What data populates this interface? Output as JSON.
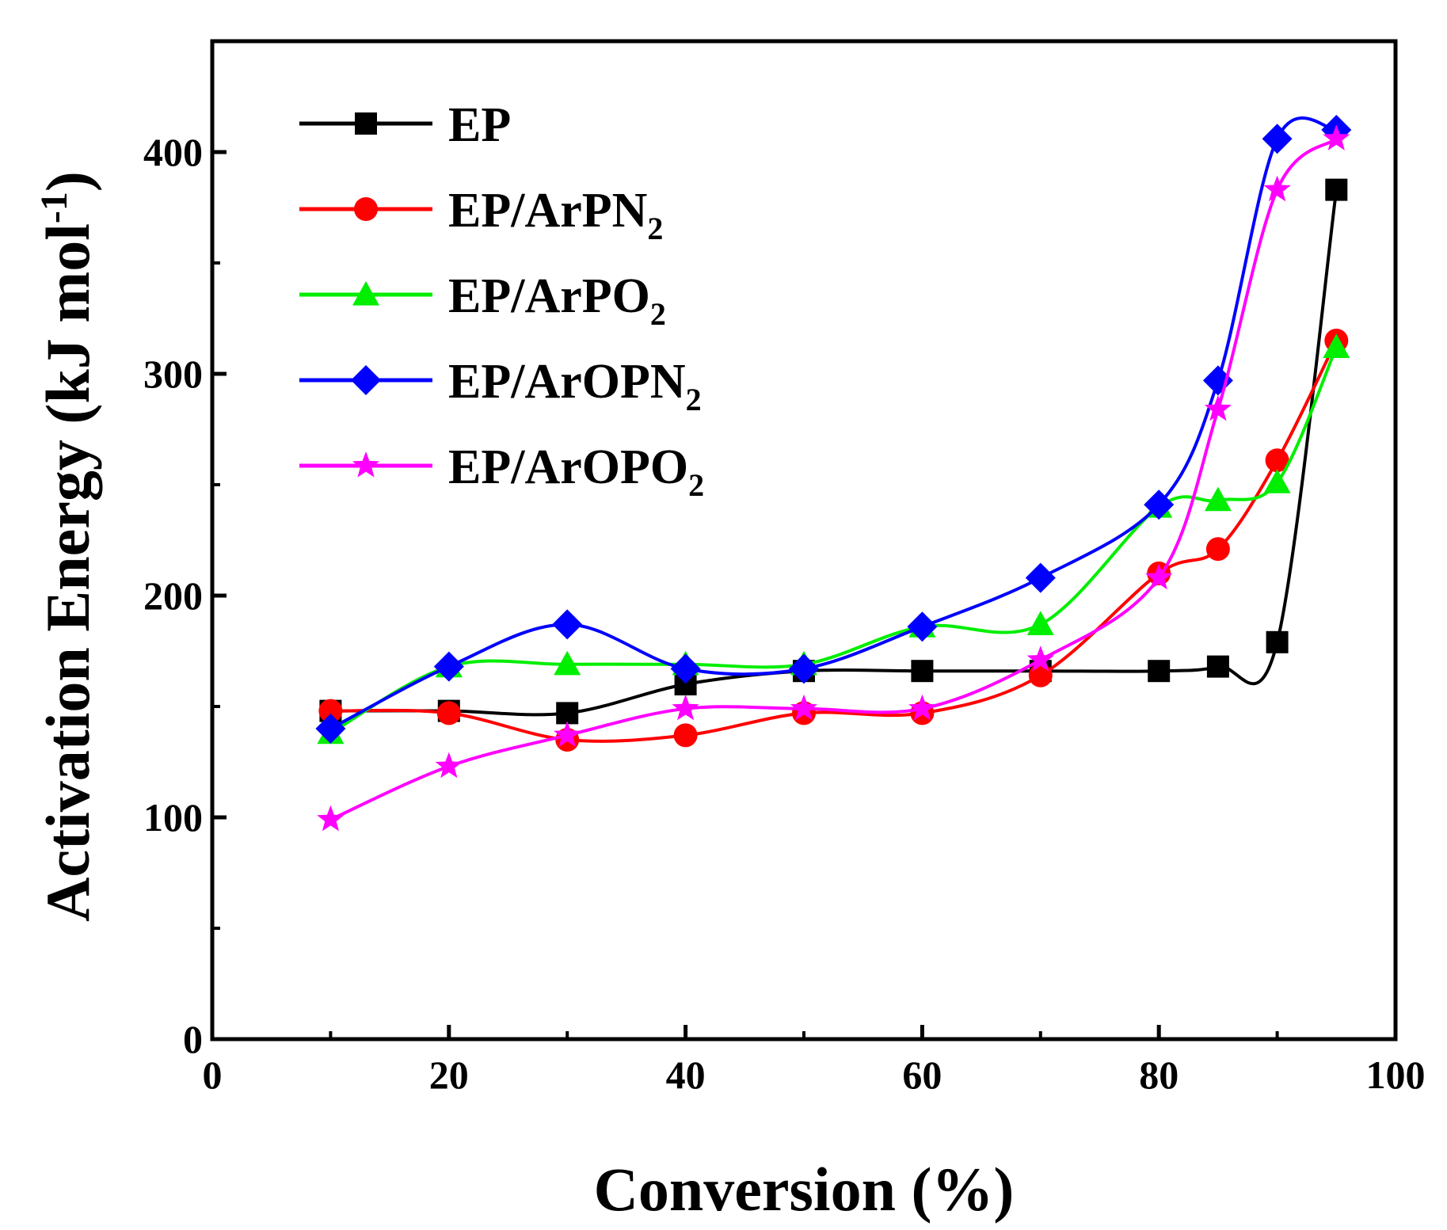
{
  "chart_data": {
    "type": "line",
    "title": "",
    "xlabel": "Conversion (%)",
    "ylabel": "Activation Energy (kJ mol",
    "ylabel_sup": "-1",
    "ylabel_close": ")",
    "xlim": [
      0,
      100
    ],
    "ylim": [
      0,
      450
    ],
    "xticks": [
      0,
      20,
      40,
      60,
      80,
      100
    ],
    "yticks": [
      0,
      100,
      200,
      300,
      400
    ],
    "x": [
      10,
      20,
      30,
      40,
      50,
      60,
      70,
      80,
      85,
      90,
      95
    ],
    "legend_position": "top-left",
    "series": [
      {
        "name": "EP",
        "name_main": "EP",
        "name_sub": "",
        "color": "#000000",
        "marker": "square",
        "values": [
          148,
          148,
          147,
          160,
          166,
          166,
          166,
          166,
          168,
          179,
          383
        ]
      },
      {
        "name": "EP/ArPN2",
        "name_main": "EP/ArPN",
        "name_sub": "2",
        "color": "#ff0000",
        "marker": "circle",
        "values": [
          148,
          147,
          135,
          137,
          147,
          147,
          164,
          210,
          221,
          261,
          315
        ]
      },
      {
        "name": "EP/ArPO2",
        "name_main": "EP/ArPO",
        "name_sub": "2",
        "color": "#00ee00",
        "marker": "triangle",
        "values": [
          138,
          168,
          169,
          169,
          169,
          186,
          187,
          240,
          243,
          251,
          312
        ]
      },
      {
        "name": "EP/ArOPN2",
        "name_main": "EP/ArOPN",
        "name_sub": "2",
        "color": "#0000ff",
        "marker": "diamond",
        "values": [
          140,
          168,
          187,
          167,
          167,
          186,
          208,
          241,
          297,
          406,
          410
        ]
      },
      {
        "name": "EP/ArOPO2",
        "name_main": "EP/ArOPO",
        "name_sub": "2",
        "color": "#ff00ff",
        "marker": "star",
        "values": [
          99,
          123,
          137,
          149,
          149,
          149,
          171,
          208,
          284,
          383,
          406
        ]
      }
    ]
  }
}
